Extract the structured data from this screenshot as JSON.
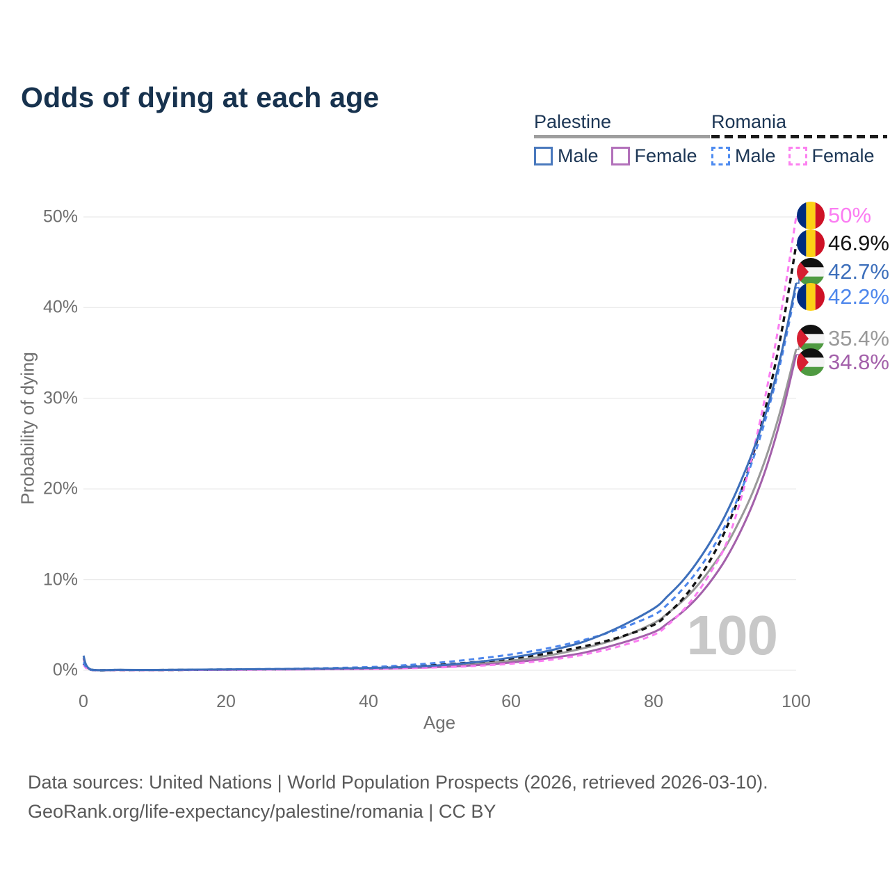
{
  "title": "Odds of dying at each age",
  "legend": {
    "groups": [
      {
        "name": "Palestine",
        "line_style": "solid",
        "underline_color": "#9e9e9e",
        "items": [
          {
            "label": "Male",
            "swatch_color": "#4a79bd",
            "swatch_style": "solid"
          },
          {
            "label": "Female",
            "swatch_color": "#b271ba",
            "swatch_style": "solid"
          }
        ]
      },
      {
        "name": "Romania",
        "line_style": "dashed",
        "underline_color": "#1a1a1a",
        "items": [
          {
            "label": "Male",
            "swatch_color": "#4d8bf0",
            "swatch_style": "dashed"
          },
          {
            "label": "Female",
            "swatch_color": "#fc80f0",
            "swatch_style": "dashed"
          }
        ]
      }
    ]
  },
  "chart_data": {
    "type": "line",
    "title": "Odds of dying at each age",
    "xlabel": "Age",
    "ylabel": "Probability of dying",
    "xlim": [
      0,
      100
    ],
    "ylim": [
      0,
      50
    ],
    "x_ticks": [
      "0",
      "20",
      "40",
      "60",
      "80",
      "100"
    ],
    "y_ticks": [
      "0%",
      "10%",
      "20%",
      "30%",
      "40%",
      "50%"
    ],
    "grid": "horizontal",
    "legend_position": "top-right",
    "watermark": "100",
    "ages": [
      0,
      1,
      5,
      10,
      20,
      30,
      40,
      45,
      50,
      55,
      60,
      65,
      70,
      75,
      80,
      82,
      84,
      86,
      88,
      90,
      92,
      94,
      96,
      98,
      100
    ],
    "series": [
      {
        "id": "pal_m",
        "name": "Palestine Male",
        "country": "Palestine",
        "sex": "Male",
        "color": "#3d6fbb",
        "dash": false,
        "flag": "palestine",
        "end_label": "42.7%",
        "values": [
          1.6,
          0.1,
          0.05,
          0.04,
          0.1,
          0.15,
          0.25,
          0.36,
          0.55,
          0.9,
          1.4,
          2.1,
          3.1,
          4.7,
          6.8,
          8.2,
          9.8,
          11.8,
          14.2,
          17.0,
          20.4,
          24.3,
          29.0,
          35.2,
          42.7
        ]
      },
      {
        "id": "pal_f",
        "name": "Palestine Female",
        "country": "Palestine",
        "sex": "Female",
        "color": "#a360aa",
        "dash": false,
        "flag": "palestine",
        "end_label": "34.8%",
        "values": [
          1.3,
          0.07,
          0.03,
          0.02,
          0.06,
          0.1,
          0.16,
          0.24,
          0.36,
          0.55,
          0.85,
          1.3,
          1.9,
          2.9,
          4.2,
          5.2,
          6.4,
          7.9,
          9.8,
          12.1,
          15.0,
          18.5,
          22.8,
          28.2,
          34.8
        ]
      },
      {
        "id": "pal_b",
        "name": "Palestine",
        "country": "Palestine",
        "sex": "Both",
        "color": "#999999",
        "dash": false,
        "flag": "palestine",
        "end_label": "35.4%",
        "values": [
          1.35,
          0.08,
          0.04,
          0.03,
          0.08,
          0.12,
          0.2,
          0.3,
          0.45,
          0.7,
          1.05,
          1.6,
          2.4,
          3.5,
          5.2,
          6.3,
          7.6,
          9.2,
          11.2,
          13.5,
          16.4,
          19.8,
          24.0,
          29.2,
          35.4
        ]
      },
      {
        "id": "rom_m",
        "name": "Romania Male",
        "country": "Romania",
        "sex": "Male",
        "color": "#4d86ec",
        "dash": true,
        "flag": "romania",
        "end_label": "42.2%",
        "values": [
          0.9,
          0.07,
          0.04,
          0.03,
          0.1,
          0.18,
          0.35,
          0.55,
          0.85,
          1.25,
          1.75,
          2.4,
          3.3,
          4.5,
          6.1,
          7.3,
          8.9,
          10.8,
          13.1,
          15.9,
          19.3,
          23.4,
          28.5,
          34.6,
          42.2
        ]
      },
      {
        "id": "rom_f",
        "name": "Romania Female",
        "country": "Romania",
        "sex": "Female",
        "color": "#fb7df2",
        "dash": true,
        "flag": "romania",
        "end_label": "50%",
        "values": [
          0.65,
          0.05,
          0.02,
          0.015,
          0.05,
          0.09,
          0.15,
          0.22,
          0.32,
          0.48,
          0.72,
          1.1,
          1.7,
          2.6,
          3.9,
          5.0,
          6.5,
          8.4,
          10.8,
          13.6,
          18.2,
          24.2,
          31.5,
          40.0,
          50.0
        ]
      },
      {
        "id": "rom_b",
        "name": "Romania",
        "country": "Romania",
        "sex": "Both",
        "color": "#141414",
        "dash": true,
        "flag": "romania",
        "end_label": "46.9%",
        "values": [
          0.75,
          0.06,
          0.03,
          0.02,
          0.08,
          0.13,
          0.25,
          0.4,
          0.6,
          0.9,
          1.3,
          1.85,
          2.6,
          3.6,
          5.0,
          6.25,
          7.8,
          9.8,
          12.2,
          15.3,
          19.1,
          23.9,
          29.9,
          37.5,
          46.9
        ]
      }
    ]
  },
  "flag_colors": {
    "romania": {
      "blue": "#002B7F",
      "yellow": "#FCD116",
      "red": "#CE1126"
    },
    "palestine": {
      "black": "#111111",
      "white": "#f4f4f4",
      "green": "#4f9a41",
      "red": "#d71f31"
    }
  },
  "footer": {
    "line1": "Data sources: United Nations | World Population Prospects (2026, retrieved 2026-03-10).",
    "line2": "GeoRank.org/life-expectancy/palestine/romania | CC BY"
  }
}
